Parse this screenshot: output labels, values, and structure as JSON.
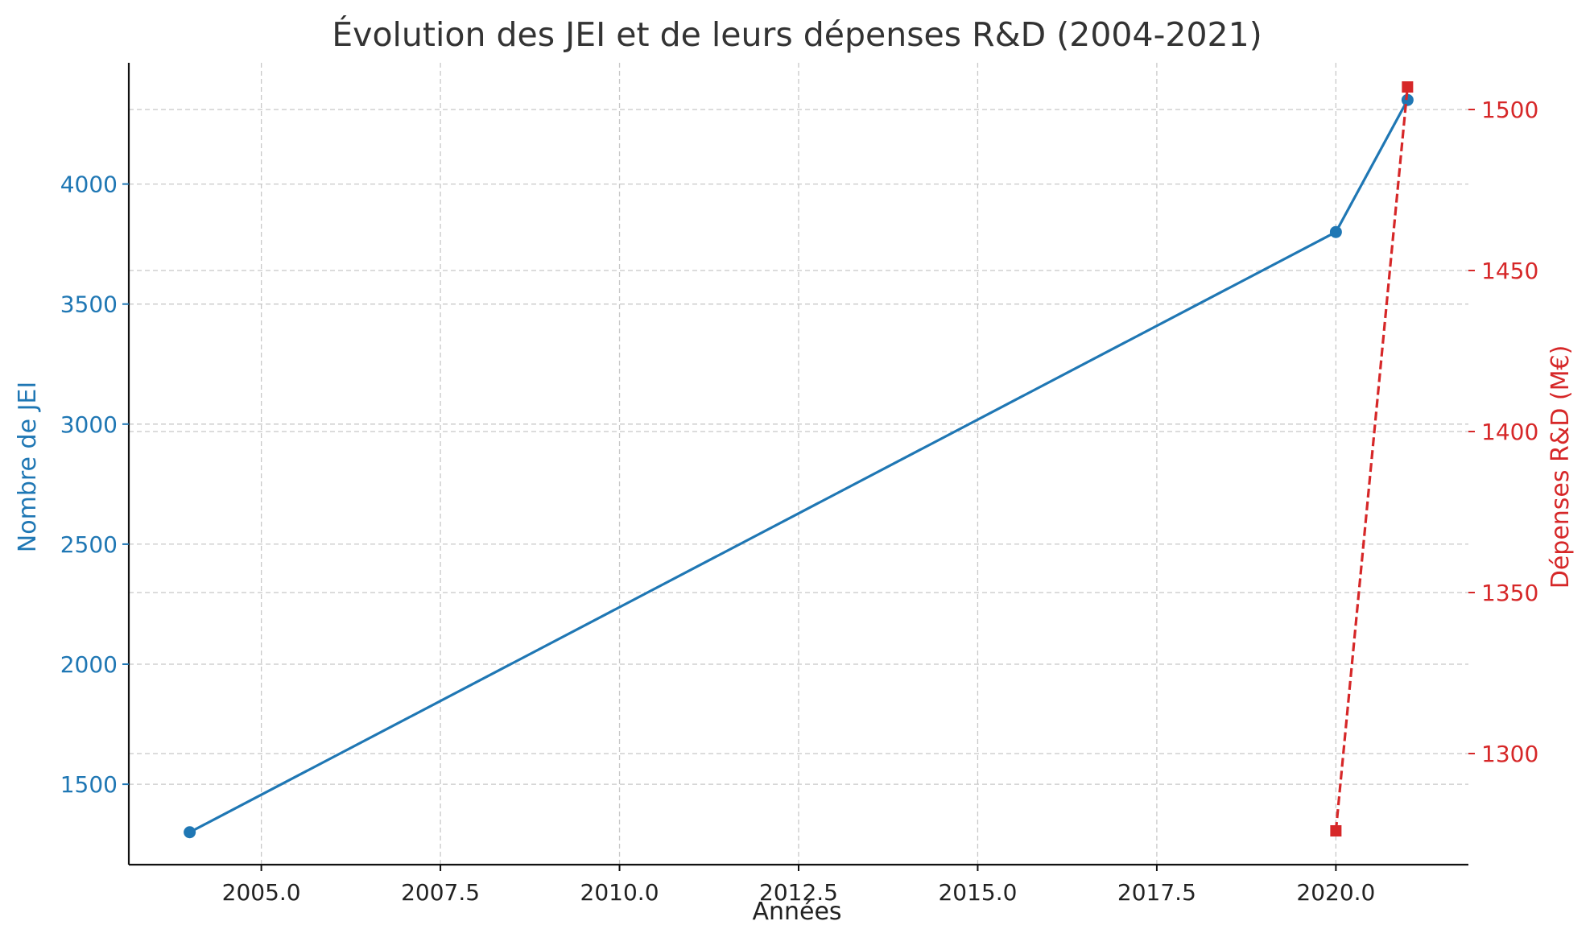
{
  "chart_data": {
    "type": "line",
    "title": "Évolution des JEI et de leurs dépenses R&D (2004-2021)",
    "xlabel": "Années",
    "ylabel_left": "Nombre de JEI",
    "ylabel_right": "Dépenses R&D (M€)",
    "xlim": [
      2003.15,
      2021.85
    ],
    "ylim_left": [
      1165,
      4505
    ],
    "ylim_right": [
      1265.5,
      1514.5
    ],
    "x_ticks": [
      2005.0,
      2007.5,
      2010.0,
      2012.5,
      2015.0,
      2017.5,
      2020.0
    ],
    "x_tick_labels": [
      "2005.0",
      "2007.5",
      "2010.0",
      "2012.5",
      "2015.0",
      "2017.5",
      "2020.0"
    ],
    "y_left_ticks": [
      1500,
      2000,
      2500,
      3000,
      3500,
      4000
    ],
    "y_left_tick_labels": [
      "1500",
      "2000",
      "2500",
      "3000",
      "3500",
      "4000"
    ],
    "y_right_ticks": [
      1300,
      1350,
      1400,
      1450,
      1500
    ],
    "y_right_tick_labels": [
      "1300",
      "1350",
      "1400",
      "1450",
      "1500"
    ],
    "grid": true,
    "series": [
      {
        "axis": "left",
        "color": "#1f77b4",
        "line_style": "solid",
        "marker": "circle",
        "x": [
          2004,
          2020,
          2021
        ],
        "values": [
          1300,
          3800,
          4350
        ]
      },
      {
        "axis": "right",
        "color": "#d62728",
        "line_style": "dashed",
        "marker": "square",
        "x": [
          2020,
          2021
        ],
        "values": [
          1276,
          1507
        ]
      }
    ]
  }
}
